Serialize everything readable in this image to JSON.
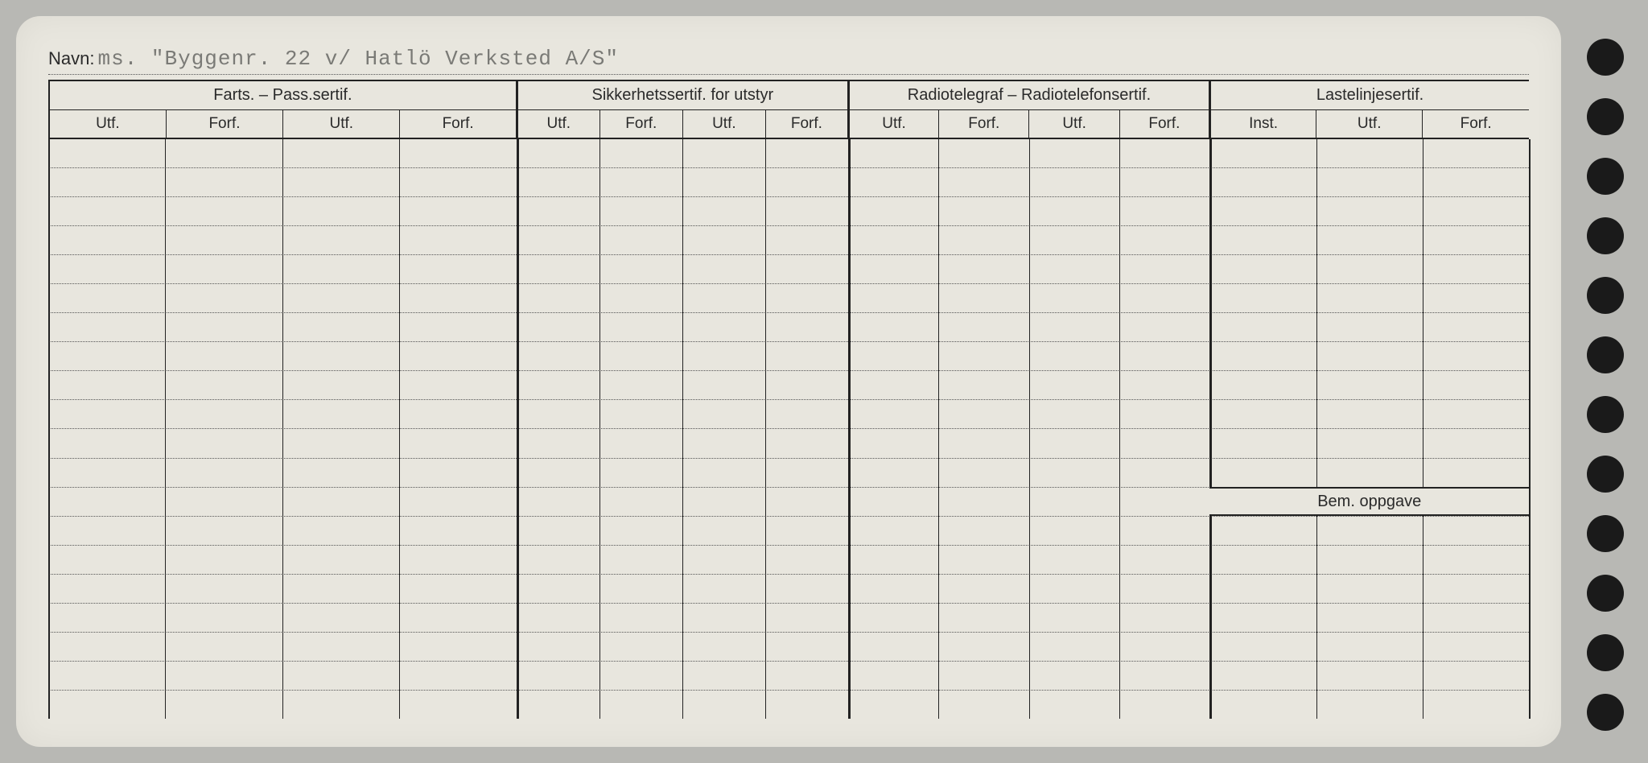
{
  "card": {
    "navn_label": "Navn:",
    "navn_value": "ms. \"Byggenr. 22 v/ Hatlö Verksted A/S\"",
    "background_color": "#e8e6de",
    "page_bg": "#b8b8b4",
    "line_color": "#222222",
    "dotted_color": "#555555",
    "text_color": "#2a2a2a",
    "typed_color": "#7a7a76"
  },
  "sections": [
    {
      "title": "Farts. – Pass.sertif.",
      "cols": [
        "Utf.",
        "Forf.",
        "Utf.",
        "Forf."
      ],
      "widths": [
        110,
        110,
        110,
        110
      ]
    },
    {
      "title": "Sikkerhetssertif. for utstyr",
      "cols": [
        "Utf.",
        "Forf.",
        "Utf.",
        "Forf."
      ],
      "widths": [
        78,
        78,
        78,
        78
      ]
    },
    {
      "title": "Radiotelegraf – Radiotelefonsertif.",
      "cols": [
        "Utf.",
        "Forf.",
        "Utf.",
        "Forf."
      ],
      "widths": [
        85,
        85,
        85,
        85
      ]
    },
    {
      "title": "Lastelinjesertif.",
      "cols": [
        "Inst.",
        "Utf.",
        "Forf."
      ],
      "widths": [
        100,
        100,
        100
      ]
    }
  ],
  "bem_label": "Bem. oppgave",
  "body_rows": 20,
  "bem_row_index": 12,
  "holes_count": 12
}
